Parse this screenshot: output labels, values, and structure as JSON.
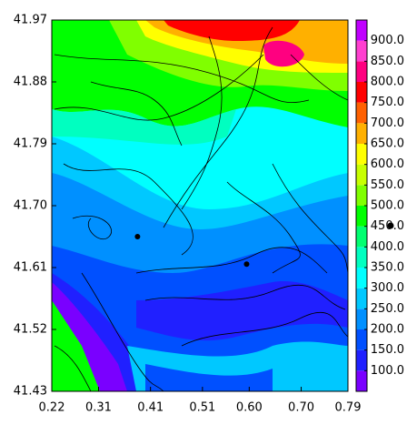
{
  "chart_data": {
    "type": "contour",
    "xlim": [
      0.22,
      0.79
    ],
    "ylim": [
      41.43,
      41.97
    ],
    "xticks": [
      0.22,
      0.31,
      0.41,
      0.51,
      {
        "value": 0.6,
        "label": "0.60"
      },
      {
        "value": 0.7,
        "label": "0.70"
      },
      0.79
    ],
    "yticks": [
      41.43,
      41.52,
      41.61,
      {
        "value": 41.7,
        "label": "41.70"
      },
      41.79,
      41.88,
      41.97
    ],
    "clim": [
      50,
      950
    ],
    "levels": [
      {
        "value": 100,
        "label": "100.0"
      },
      {
        "value": 150,
        "label": "150.0"
      },
      {
        "value": 200,
        "label": "200.0"
      },
      {
        "value": 250,
        "label": "250.0"
      },
      {
        "value": 300,
        "label": "300.0"
      },
      {
        "value": 350,
        "label": "350.0"
      },
      {
        "value": 400,
        "label": "400.0"
      },
      {
        "value": 450,
        "label": "450.0"
      },
      {
        "value": 500,
        "label": "500.0"
      },
      {
        "value": 550,
        "label": "550.0"
      },
      {
        "value": 600,
        "label": "600.0"
      },
      {
        "value": 650,
        "label": "650.0"
      },
      {
        "value": 700,
        "label": "700.0"
      },
      {
        "value": 750,
        "label": "750.0"
      },
      {
        "value": 800,
        "label": "800.0"
      },
      {
        "value": 850,
        "label": "850.0"
      },
      {
        "value": 900,
        "label": "900.0"
      }
    ],
    "colors": [
      "#7a00ff",
      "#2020ff",
      "#0050ff",
      "#0090ff",
      "#00c8ff",
      "#00ffff",
      "#00ffc0",
      "#00ff70",
      "#00ff00",
      "#80ff00",
      "#c8ff00",
      "#ffff00",
      "#ffb000",
      "#ff6000",
      "#ff0000",
      "#ff0080",
      "#ff40d0",
      "#c000ff"
    ],
    "points": {
      "x": [
        0.385,
        0.595
      ],
      "y": [
        41.655,
        41.615
      ]
    }
  }
}
